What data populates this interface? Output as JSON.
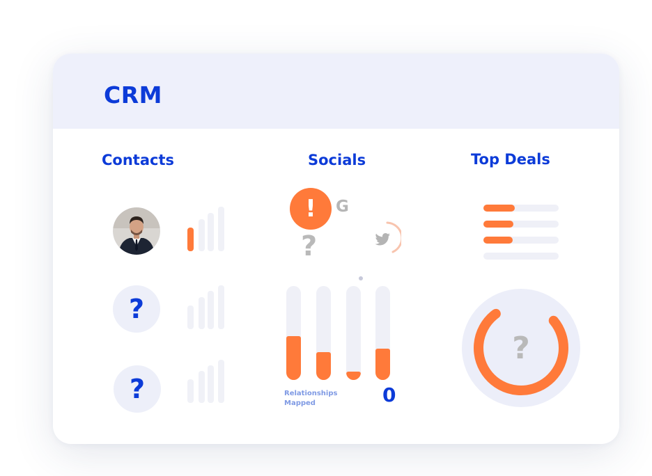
{
  "header": {
    "title": "CRM"
  },
  "sections": {
    "contacts": "Contacts",
    "socials": "Socials",
    "top_deals": "Top Deals"
  },
  "contacts": [
    {
      "avatar": "photo",
      "placeholder": "",
      "signal_level": 1
    },
    {
      "avatar": "unknown",
      "placeholder": "?",
      "signal_level": 0
    },
    {
      "avatar": "unknown",
      "placeholder": "?",
      "signal_level": 0
    }
  ],
  "socials": {
    "alert_glyph": "!",
    "google_glyph": "G",
    "unknown_glyph": "?",
    "icons": [
      "alert-icon",
      "google-icon",
      "twitter-icon"
    ],
    "bars": [
      0.47,
      0.3,
      0.09,
      0.33
    ],
    "relationships_label": [
      "Relationships",
      "Mapped"
    ],
    "relationships_count": "0"
  },
  "top_deals": {
    "bars": [
      0.42,
      0.4,
      0.39,
      0.0
    ],
    "donut_fraction": 0.76,
    "donut_placeholder": "?"
  },
  "colors": {
    "accent": "#ff7a3a",
    "brand": "#0c3bd8",
    "header_bg": "#eef0fb",
    "track": "#eff0f7",
    "muted_label": "#7f9ae4"
  }
}
